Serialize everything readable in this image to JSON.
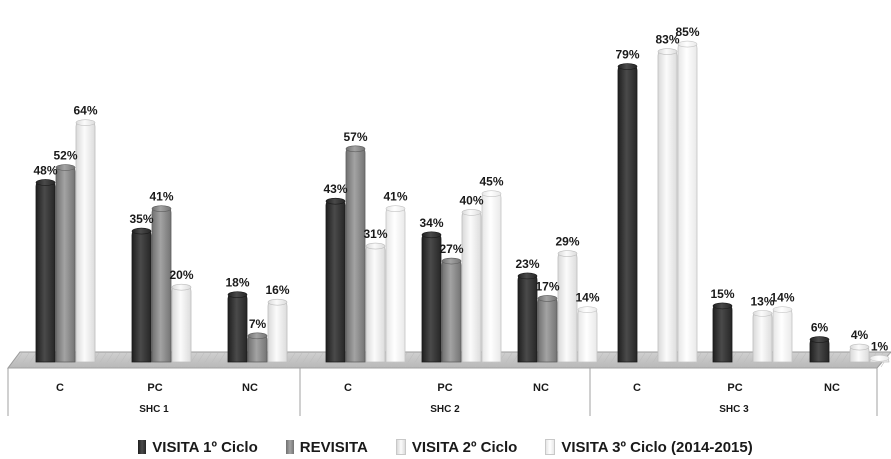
{
  "chart_data": {
    "type": "bar",
    "groups": [
      {
        "name": "SHC 1",
        "categories": [
          "C",
          "PC",
          "NC"
        ]
      },
      {
        "name": "SHC 2",
        "categories": [
          "C",
          "PC",
          "NC"
        ]
      },
      {
        "name": "SHC 3",
        "categories": [
          "C",
          "PC",
          "NC"
        ]
      }
    ],
    "series": [
      {
        "name": "VISITA 1º Ciclo",
        "color": "#3a3a3a",
        "values": [
          48,
          35,
          18,
          43,
          34,
          23,
          79,
          15,
          6
        ],
        "labels": [
          "48%",
          "35%",
          "18%",
          "43%",
          "34%",
          "23%",
          "79%",
          "15%",
          "6%"
        ]
      },
      {
        "name": "REVISITA",
        "color": "#8c8c8c",
        "values": [
          52,
          41,
          7,
          57,
          27,
          17,
          null,
          null,
          null
        ],
        "labels": [
          "52%",
          "41%",
          "7%",
          "57%",
          "27%",
          "17%",
          null,
          null,
          null
        ]
      },
      {
        "name": "VISITA 2º Ciclo",
        "color": "#f2f2f2",
        "values": [
          64,
          20,
          16,
          31,
          40,
          29,
          83,
          13,
          4
        ],
        "labels": [
          "64%",
          "20%",
          "16%",
          "31%",
          "40%",
          "29%",
          "83%",
          "13%",
          "4%"
        ]
      },
      {
        "name": "VISITA 3º Ciclo (2014-2015)",
        "color": "#ffffff",
        "values": [
          null,
          null,
          null,
          41,
          45,
          14,
          85,
          14,
          1
        ],
        "labels": [
          null,
          null,
          null,
          "41%",
          "45%",
          "14%",
          "85%",
          "14%",
          "1%"
        ]
      }
    ],
    "ylim": [
      0,
      100
    ],
    "grid": false,
    "legend_position": "bottom",
    "title": "",
    "xlabel": "",
    "ylabel": ""
  },
  "legend": {
    "items": [
      {
        "label": "VISITA 1º Ciclo",
        "color": "#3a3a3a"
      },
      {
        "label": "REVISITA",
        "color": "#8c8c8c"
      },
      {
        "label": "VISITA 2º Ciclo",
        "color": "#f2f2f2"
      },
      {
        "label": "VISITA 3º Ciclo (2014-2015)",
        "color": "#ffffff"
      }
    ]
  }
}
